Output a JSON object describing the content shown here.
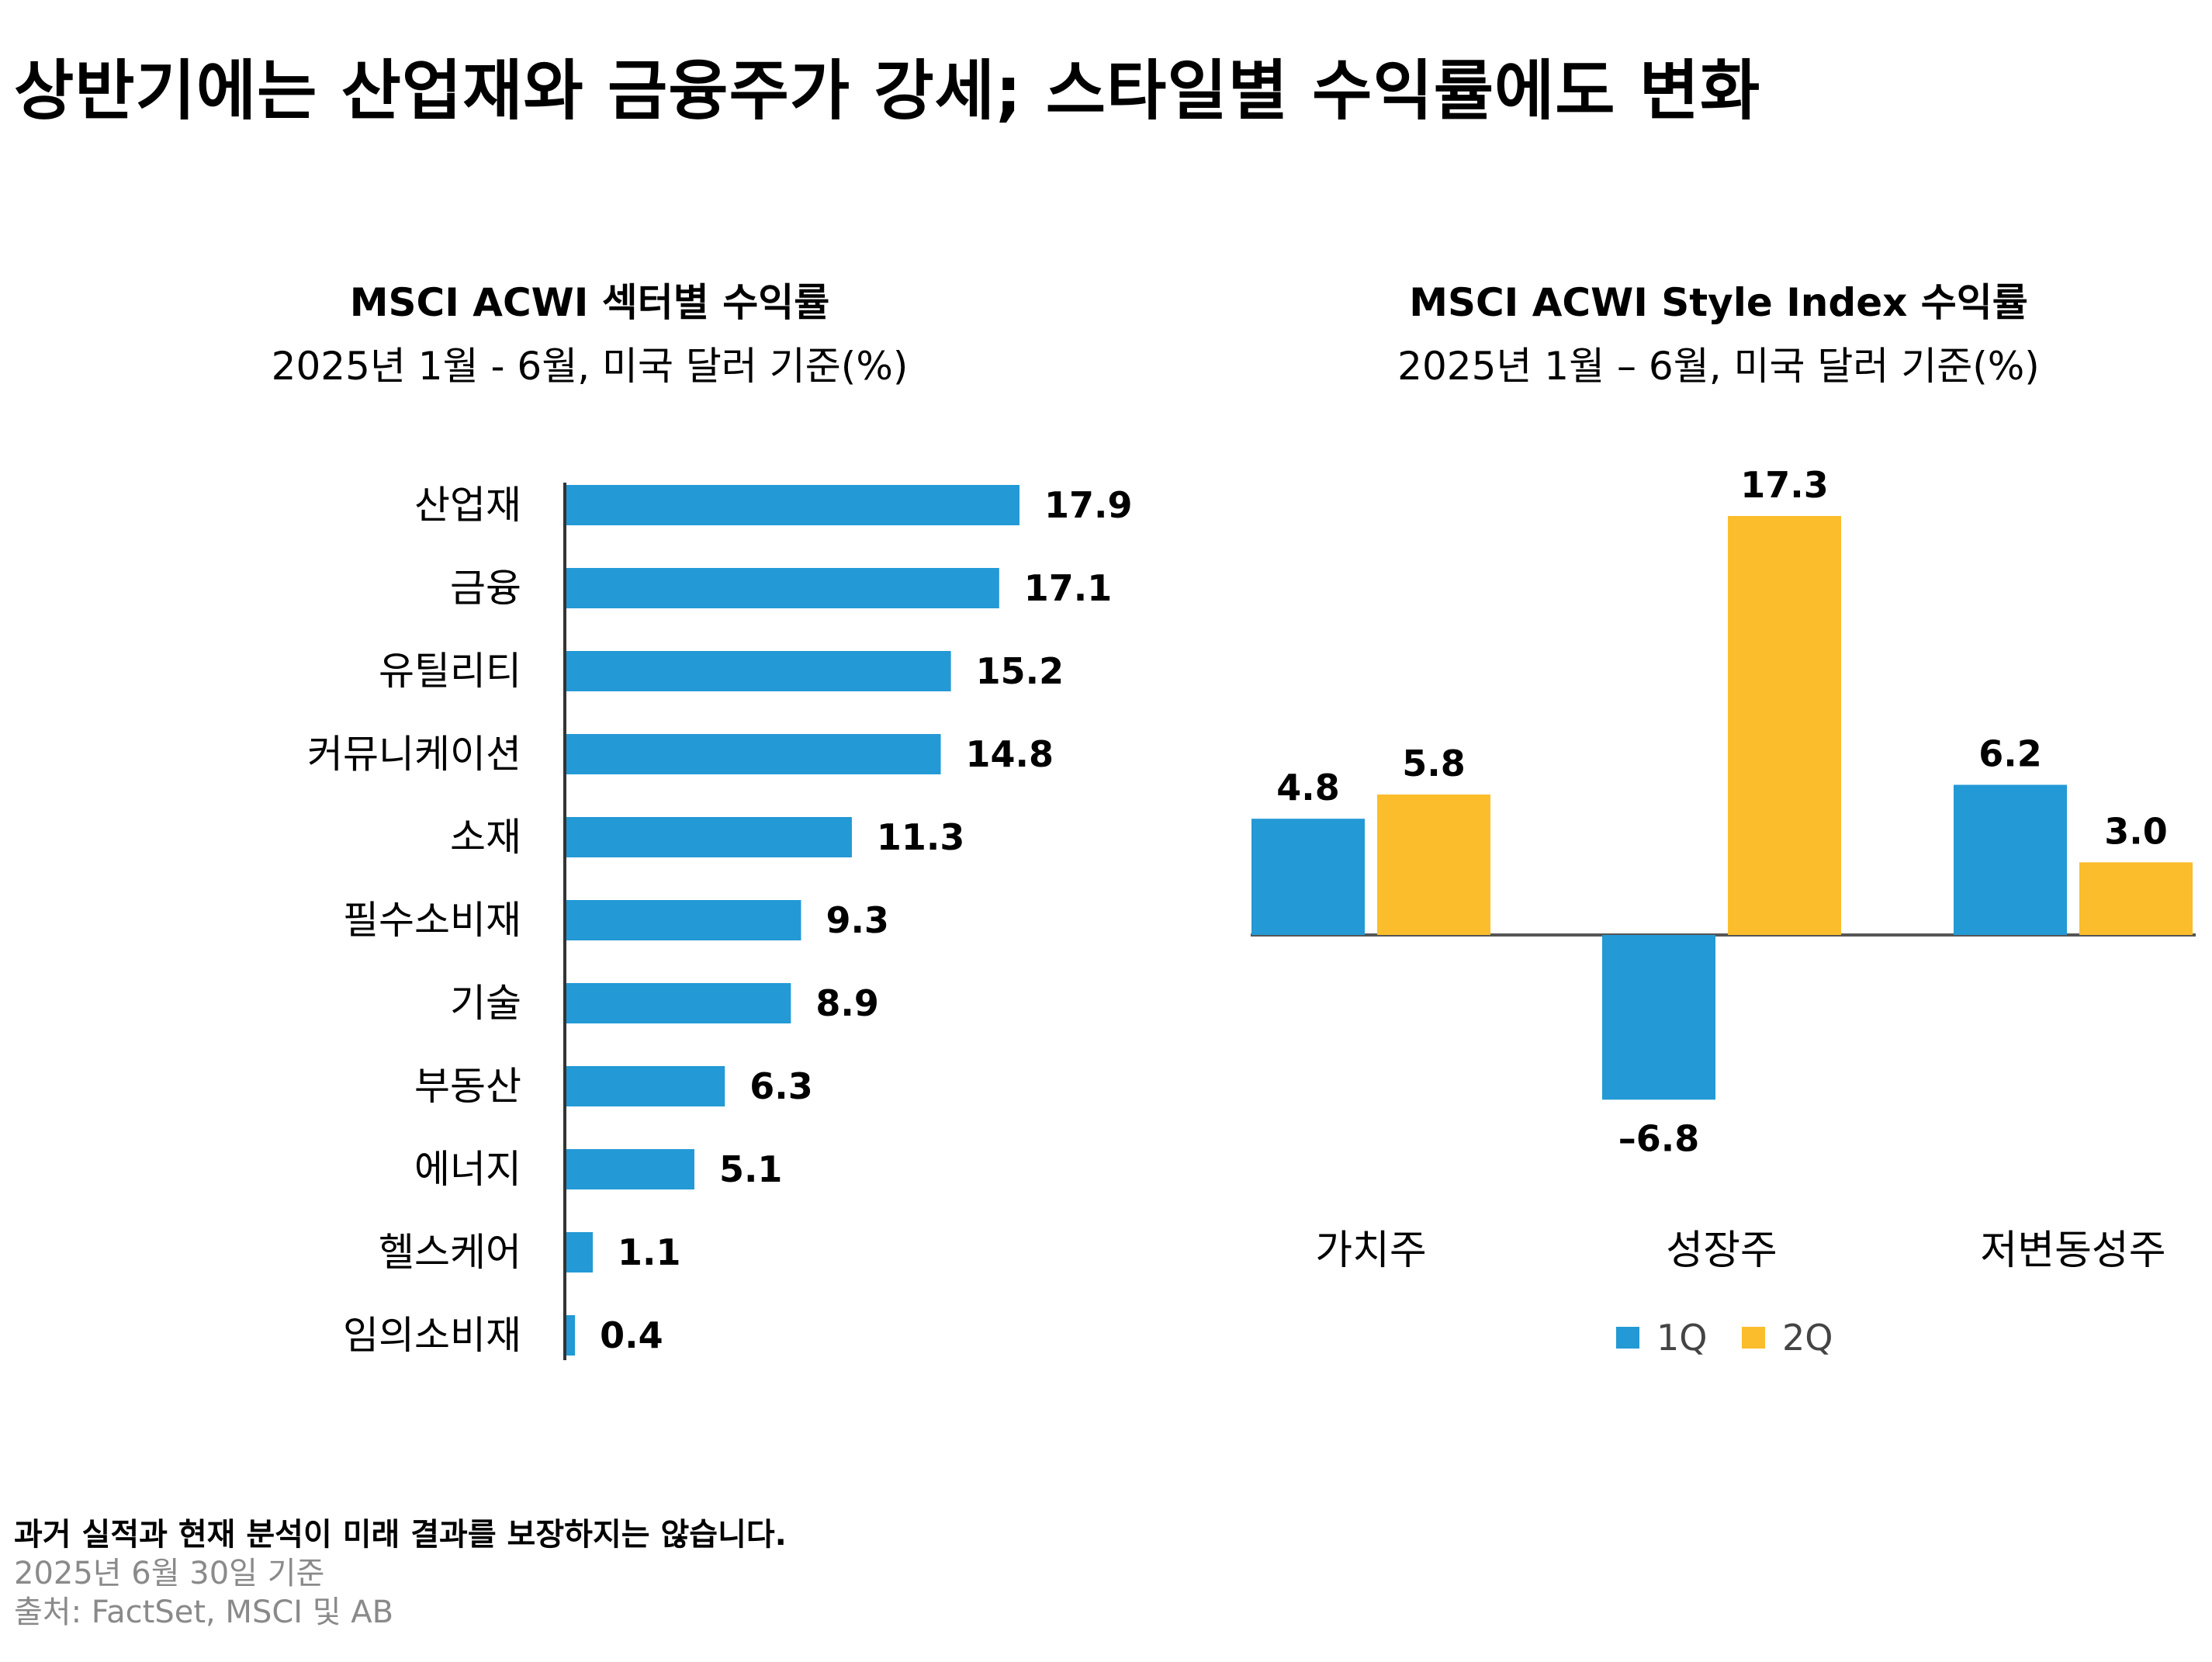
{
  "title": "상반기에는 산업재와 금융주가 강세; 스타일별 수익률에도 변화",
  "footer": {
    "disclaimer": "과거 실적과 현재 분석이 미래 결과를 보장하지는 않습니다.",
    "as_of": "2025년 6월 30일 기준",
    "source": "출처: FactSet, MSCI 및 AB"
  },
  "colors": {
    "q1": "#2399D5",
    "q2": "#FBBD2B",
    "axis": "#333333"
  },
  "chart_data": [
    {
      "type": "bar",
      "orientation": "horizontal",
      "title": "MSCI ACWI 섹터별 수익률",
      "subtitle": "2025년 1월 - 6월, 미국 달러 기준(%)",
      "categories": [
        "산업재",
        "금융",
        "유틸리티",
        "커뮤니케이션",
        "소재",
        "필수소비재",
        "기술",
        "부동산",
        "에너지",
        "헬스케어",
        "임의소비재"
      ],
      "values": [
        17.9,
        17.1,
        15.2,
        14.8,
        11.3,
        9.3,
        8.9,
        6.3,
        5.1,
        1.1,
        0.4
      ],
      "value_labels": [
        "17.9",
        "17.1",
        "15.2",
        "14.8",
        "11.3",
        "9.3",
        "8.9",
        "6.3",
        "5.1",
        "1.1",
        "0.4"
      ],
      "xlim": [
        0,
        18
      ],
      "grid": false,
      "color": "#2399D5"
    },
    {
      "type": "bar",
      "title": "MSCI ACWI Style Index 수익률",
      "subtitle": "2025년 1월 – 6월, 미국 달러 기준(%)",
      "categories": [
        "가치주",
        "성장주",
        "저변동성주"
      ],
      "series": [
        {
          "name": "1Q",
          "values": [
            4.8,
            -6.8,
            6.2
          ],
          "labels": [
            "4.8",
            "–6.8",
            "6.2"
          ],
          "color": "#2399D5"
        },
        {
          "name": "2Q",
          "values": [
            5.8,
            17.3,
            3.0
          ],
          "labels": [
            "5.8",
            "17.3",
            "3.0"
          ],
          "color": "#FBBD2B"
        }
      ],
      "ylim": [
        -8,
        18
      ],
      "grid": false,
      "legend": "bottom-center"
    }
  ]
}
